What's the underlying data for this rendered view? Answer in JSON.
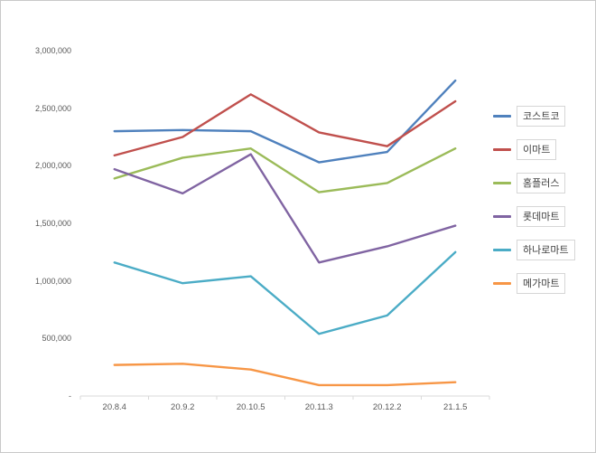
{
  "chart_data": {
    "type": "line",
    "title": "",
    "xlabel": "",
    "ylabel": "",
    "categories": [
      "20.8.4",
      "20.9.2",
      "20.10.5",
      "20.11.3",
      "20.12.2",
      "21.1.5"
    ],
    "series": [
      {
        "name": "코스트코",
        "color": "#4F81BD",
        "values": [
          2300000,
          2310000,
          2300000,
          2030000,
          2120000,
          2740000
        ]
      },
      {
        "name": "이마트",
        "color": "#C0504D",
        "values": [
          2090000,
          2250000,
          2620000,
          2290000,
          2170000,
          2560000
        ]
      },
      {
        "name": "홈플러스",
        "color": "#9BBB59",
        "values": [
          1890000,
          2070000,
          2150000,
          1770000,
          1850000,
          2150000
        ]
      },
      {
        "name": "롯데마트",
        "color": "#8064A2",
        "values": [
          1970000,
          1760000,
          2100000,
          1160000,
          1300000,
          1480000
        ]
      },
      {
        "name": "하나로마트",
        "color": "#4BACC6",
        "values": [
          1160000,
          980000,
          1040000,
          540000,
          700000,
          1250000
        ]
      },
      {
        "name": "메가마트",
        "color": "#F79646",
        "values": [
          270000,
          280000,
          230000,
          95000,
          95000,
          120000
        ]
      }
    ],
    "ylim": [
      0,
      3000000
    ],
    "ytick_step": 500000,
    "ytick_labels": [
      "3,000,000",
      "2,500,000",
      "2,000,000",
      "1,500,000",
      "1,000,000",
      "500,000",
      "-"
    ],
    "legend_position": "right",
    "grid": false,
    "axis_color": "#d9d9d9",
    "tick_label_color": "#595959"
  }
}
